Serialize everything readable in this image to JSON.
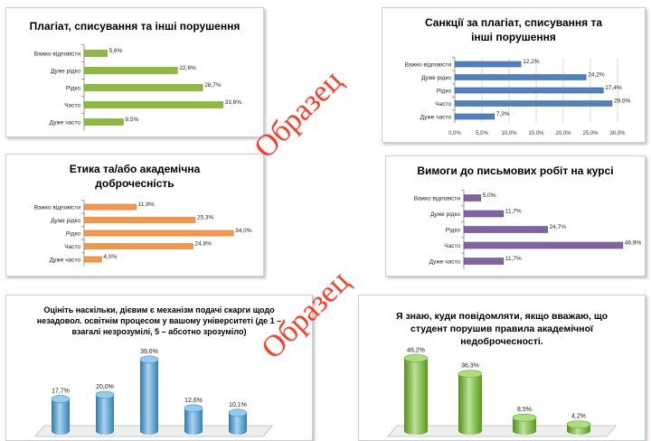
{
  "watermark": "Образец",
  "colors": {
    "green": "#8dbb3c",
    "blue": "#4f81bd",
    "orange": "#f79646",
    "purple": "#8064a2",
    "cyl_blue": "#3ea0e0",
    "cyl_green": "#6cbf1e"
  },
  "chart_data": [
    {
      "type": "bar",
      "orientation": "horizontal",
      "title": "Плагіат, списування та інші порушення",
      "categories": [
        "Важко відповісти",
        "Дуже рідко",
        "Рідко",
        "Часто",
        "Дуже часто"
      ],
      "values": [
        5.6,
        22.6,
        28.7,
        33.6,
        9.5
      ],
      "value_labels": [
        "5,6%",
        "22,6%",
        "28,7%",
        "33,6%",
        "9,5%"
      ],
      "color": "green",
      "xlim": [
        0,
        35
      ]
    },
    {
      "type": "bar",
      "orientation": "horizontal",
      "title": "Санкції за плагіат, списування та інші порушення",
      "categories": [
        "Важко відповісти",
        "Дуже рідко",
        "Рідко",
        "Часто",
        "Дуже часто"
      ],
      "values": [
        12.2,
        24.2,
        27.4,
        29.0,
        7.3
      ],
      "value_labels": [
        "12,2%",
        "24,2%",
        "27,4%",
        "29,0%",
        "7,3%"
      ],
      "color": "blue",
      "xlim": [
        0,
        30
      ],
      "xticks": [
        "0,0%",
        "5,0%",
        "10,0%",
        "15,0%",
        "20,0%",
        "25,0%",
        "30,0%"
      ]
    },
    {
      "type": "bar",
      "orientation": "horizontal",
      "title": "Етика та/або академічна доброчесність",
      "categories": [
        "Важко відповісти",
        "Дуже рідко",
        "Рідко",
        "Часто",
        "Дуже часто"
      ],
      "values": [
        11.9,
        25.3,
        34.0,
        24.8,
        4.0
      ],
      "value_labels": [
        "11,9%",
        "25,3%",
        "34,0%",
        "24,8%",
        "4,0%"
      ],
      "color": "orange",
      "xlim": [
        0,
        35
      ]
    },
    {
      "type": "bar",
      "orientation": "horizontal",
      "title": "Вимоги до письмових робіт на курсі",
      "categories": [
        "Важко відповісти",
        "Дуже рідко",
        "Рідко",
        "Часто",
        "Дуже часто"
      ],
      "values": [
        5.0,
        11.7,
        24.7,
        46.9,
        11.7
      ],
      "value_labels": [
        "5,0%",
        "11,7%",
        "24,7%",
        "46,9%",
        "11,7%"
      ],
      "color": "purple",
      "xlim": [
        0,
        48
      ]
    },
    {
      "type": "bar",
      "orientation": "vertical",
      "style": "cylinder",
      "title": "Оцініть наскільки, дієвим є механізм подачі скарги щодо незадовол. освітнім процесом у вашому університеті (де 1 – взагалі незрозумілі, 5 – абсотно зрозуміло)",
      "values": [
        17.7,
        20.0,
        39.6,
        12.6,
        10.1
      ],
      "value_labels": [
        "17,7%",
        "20,0%",
        "39,6%",
        "12,6%",
        "10,1%"
      ],
      "color": "cyl_blue",
      "ylim": [
        0,
        40
      ]
    },
    {
      "type": "bar",
      "orientation": "vertical",
      "style": "cylinder",
      "title": "Я знаю, куди повідомляти, якщо вважаю, що студент порушив правила академічної недоброчесності.",
      "values": [
        46.2,
        36.3,
        8.5,
        4.2
      ],
      "value_labels": [
        "46,2%",
        "36,3%",
        "8,5%",
        "4,2%"
      ],
      "color": "cyl_green",
      "ylim": [
        0,
        47
      ]
    }
  ]
}
